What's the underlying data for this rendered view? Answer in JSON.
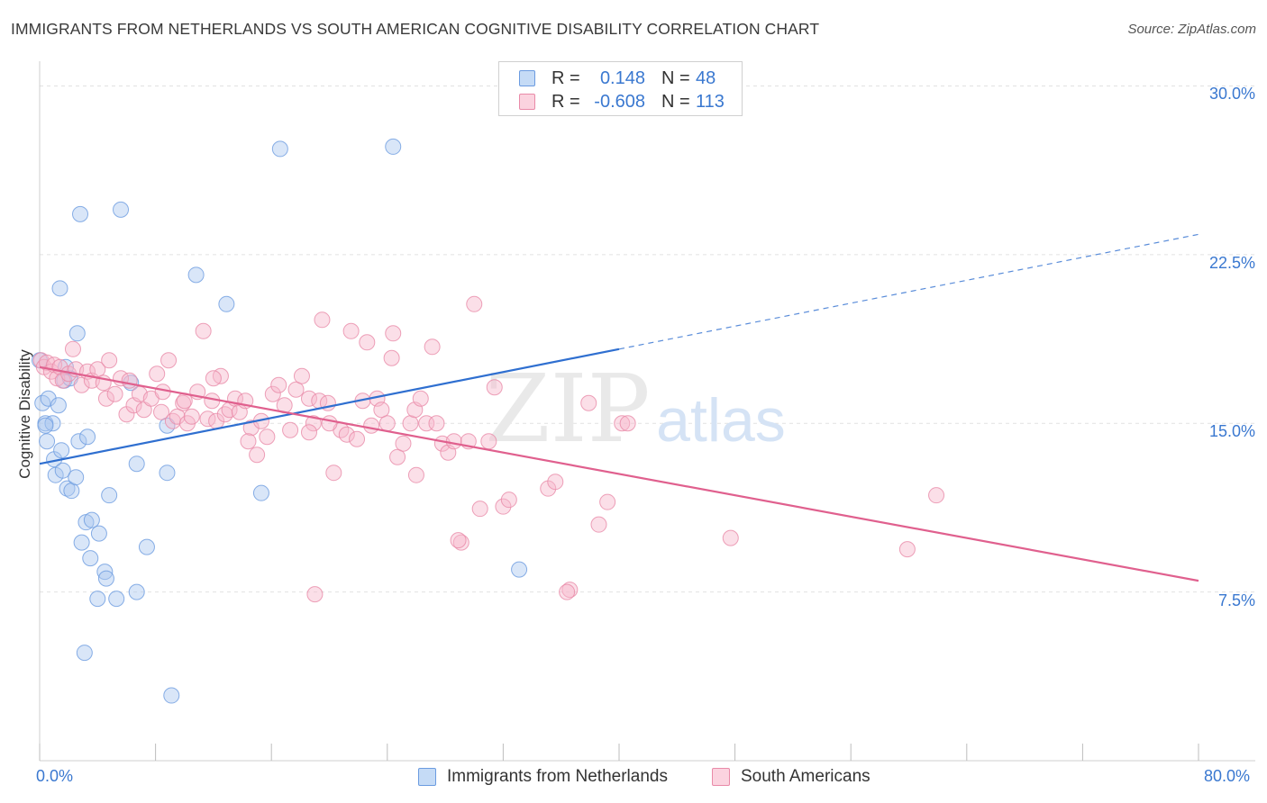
{
  "title": "IMMIGRANTS FROM NETHERLANDS VS SOUTH AMERICAN COGNITIVE DISABILITY CORRELATION CHART",
  "source": "Source: ZipAtlas.com",
  "watermark": {
    "zip": "ZIP",
    "atlas": "atlas"
  },
  "legend_top": [
    {
      "r_label": "R =",
      "r_value": "0.148",
      "n_label": "N =",
      "n_value": "48"
    },
    {
      "r_label": "R =",
      "r_value": "-0.608",
      "n_label": "N =",
      "n_value": "113"
    }
  ],
  "legend_bottom": [
    "Immigrants from Netherlands",
    "South Americans"
  ],
  "colors": {
    "blue_fill": "#aac8f0",
    "blue_stroke": "#6b9be0",
    "blue_line": "#2f6fd0",
    "pink_fill": "#f6b7cb",
    "pink_stroke": "#e98aa8",
    "pink_line": "#e0608e",
    "grid": "#e2e2e2",
    "tick_label": "#3a78d0"
  },
  "chart_data": {
    "type": "scatter",
    "title": "IMMIGRANTS FROM NETHERLANDS VS SOUTH AMERICAN COGNITIVE DISABILITY CORRELATION CHART",
    "xlabel": "",
    "ylabel": "Cognitive Disability",
    "xlim": [
      0,
      80
    ],
    "ylim": [
      0,
      32.5
    ],
    "x_tick_labels": [
      "0.0%",
      "80.0%"
    ],
    "y_ticks": [
      7.5,
      15.0,
      22.5,
      30.0
    ],
    "y_tick_labels": [
      "7.5%",
      "15.0%",
      "22.5%",
      "30.0%"
    ],
    "grid": true,
    "legend": "top-center",
    "series": [
      {
        "name": "Immigrants from Netherlands",
        "color": "#aac8f0",
        "points": [
          [
            0.0,
            17.8
          ],
          [
            0.2,
            15.9
          ],
          [
            0.4,
            15.0
          ],
          [
            0.5,
            14.2
          ],
          [
            0.6,
            16.1
          ],
          [
            0.9,
            15.0
          ],
          [
            1.0,
            13.4
          ],
          [
            1.1,
            12.7
          ],
          [
            1.3,
            15.8
          ],
          [
            1.4,
            21.0
          ],
          [
            1.5,
            13.8
          ],
          [
            1.6,
            12.9
          ],
          [
            1.7,
            16.9
          ],
          [
            1.9,
            12.1
          ],
          [
            2.1,
            17.0
          ],
          [
            2.2,
            12.0
          ],
          [
            2.5,
            12.6
          ],
          [
            2.6,
            19.0
          ],
          [
            2.7,
            14.2
          ],
          [
            2.8,
            24.3
          ],
          [
            2.9,
            9.7
          ],
          [
            3.2,
            10.6
          ],
          [
            3.3,
            14.4
          ],
          [
            3.6,
            10.7
          ],
          [
            4.1,
            10.1
          ],
          [
            3.5,
            9.0
          ],
          [
            4.5,
            8.4
          ],
          [
            4.6,
            8.1
          ],
          [
            4.8,
            11.8
          ],
          [
            4.0,
            7.2
          ],
          [
            5.3,
            7.2
          ],
          [
            6.3,
            16.8
          ],
          [
            6.7,
            7.5
          ],
          [
            6.7,
            13.2
          ],
          [
            7.4,
            9.5
          ],
          [
            8.8,
            12.8
          ],
          [
            8.8,
            14.9
          ],
          [
            9.1,
            2.9
          ],
          [
            10.8,
            21.6
          ],
          [
            12.9,
            20.3
          ],
          [
            15.3,
            11.9
          ],
          [
            16.6,
            27.2
          ],
          [
            24.4,
            27.3
          ],
          [
            33.1,
            8.5
          ],
          [
            5.6,
            24.5
          ],
          [
            3.1,
            4.8
          ],
          [
            0.4,
            14.9
          ],
          [
            1.8,
            17.5
          ]
        ]
      },
      {
        "name": "South Americans",
        "color": "#f6b7cb",
        "points": [
          [
            0.1,
            17.8
          ],
          [
            0.3,
            17.5
          ],
          [
            0.5,
            17.7
          ],
          [
            0.8,
            17.3
          ],
          [
            1.0,
            17.6
          ],
          [
            1.2,
            17.0
          ],
          [
            1.4,
            17.5
          ],
          [
            1.6,
            16.9
          ],
          [
            2.0,
            17.2
          ],
          [
            2.3,
            18.3
          ],
          [
            2.5,
            17.4
          ],
          [
            2.9,
            16.7
          ],
          [
            3.3,
            17.3
          ],
          [
            3.6,
            16.9
          ],
          [
            4.0,
            17.4
          ],
          [
            4.4,
            16.8
          ],
          [
            4.6,
            16.1
          ],
          [
            4.8,
            17.8
          ],
          [
            5.2,
            16.3
          ],
          [
            5.6,
            17.0
          ],
          [
            6.0,
            15.4
          ],
          [
            6.2,
            16.9
          ],
          [
            6.5,
            15.8
          ],
          [
            6.9,
            16.3
          ],
          [
            7.2,
            15.6
          ],
          [
            7.7,
            16.1
          ],
          [
            8.1,
            17.2
          ],
          [
            8.5,
            16.4
          ],
          [
            8.9,
            17.8
          ],
          [
            9.2,
            15.1
          ],
          [
            9.5,
            15.3
          ],
          [
            9.9,
            15.9
          ],
          [
            10.2,
            15.0
          ],
          [
            10.5,
            15.3
          ],
          [
            10.9,
            16.4
          ],
          [
            11.3,
            19.1
          ],
          [
            11.6,
            15.2
          ],
          [
            11.9,
            16.0
          ],
          [
            12.2,
            15.1
          ],
          [
            12.5,
            17.1
          ],
          [
            12.8,
            15.4
          ],
          [
            13.1,
            15.6
          ],
          [
            13.5,
            16.1
          ],
          [
            13.8,
            15.5
          ],
          [
            14.2,
            16.0
          ],
          [
            14.6,
            14.8
          ],
          [
            15.0,
            13.6
          ],
          [
            15.3,
            15.1
          ],
          [
            15.7,
            14.4
          ],
          [
            16.1,
            16.3
          ],
          [
            16.5,
            16.7
          ],
          [
            16.9,
            15.8
          ],
          [
            17.3,
            14.7
          ],
          [
            17.7,
            16.5
          ],
          [
            18.1,
            17.1
          ],
          [
            18.6,
            16.1
          ],
          [
            18.9,
            15.0
          ],
          [
            19.3,
            16.0
          ],
          [
            19.5,
            19.6
          ],
          [
            19.9,
            15.9
          ],
          [
            20.3,
            12.8
          ],
          [
            20.8,
            14.7
          ],
          [
            21.2,
            14.5
          ],
          [
            21.5,
            19.1
          ],
          [
            21.9,
            14.3
          ],
          [
            22.3,
            16.0
          ],
          [
            22.6,
            18.6
          ],
          [
            22.9,
            14.9
          ],
          [
            23.3,
            16.1
          ],
          [
            23.6,
            15.6
          ],
          [
            24.0,
            15.0
          ],
          [
            24.3,
            17.9
          ],
          [
            24.7,
            13.5
          ],
          [
            25.1,
            14.1
          ],
          [
            25.6,
            15.0
          ],
          [
            25.9,
            15.6
          ],
          [
            26.3,
            16.1
          ],
          [
            26.7,
            15.0
          ],
          [
            27.1,
            18.4
          ],
          [
            27.4,
            15.0
          ],
          [
            27.8,
            14.1
          ],
          [
            28.2,
            13.7
          ],
          [
            28.6,
            14.2
          ],
          [
            29.1,
            9.7
          ],
          [
            29.6,
            14.2
          ],
          [
            30.0,
            20.3
          ],
          [
            30.4,
            11.2
          ],
          [
            31.0,
            14.2
          ],
          [
            31.4,
            16.6
          ],
          [
            32.0,
            11.3
          ],
          [
            32.4,
            11.6
          ],
          [
            35.1,
            12.1
          ],
          [
            35.6,
            12.4
          ],
          [
            36.6,
            7.6
          ],
          [
            36.4,
            7.5
          ],
          [
            37.9,
            15.9
          ],
          [
            39.2,
            11.5
          ],
          [
            40.2,
            15.0
          ],
          [
            47.7,
            9.9
          ],
          [
            59.9,
            9.4
          ],
          [
            61.9,
            11.8
          ],
          [
            40.6,
            15.0
          ],
          [
            19.0,
            7.4
          ],
          [
            14.4,
            14.2
          ],
          [
            18.6,
            14.6
          ],
          [
            26.0,
            12.7
          ],
          [
            28.9,
            9.8
          ],
          [
            38.6,
            10.5
          ],
          [
            20.0,
            15.0
          ],
          [
            10.0,
            16.0
          ],
          [
            24.4,
            19.0
          ],
          [
            12.0,
            17.0
          ],
          [
            8.4,
            15.5
          ]
        ]
      }
    ],
    "trend_lines": [
      {
        "series": "Immigrants from Netherlands",
        "from": [
          0,
          13.2
        ],
        "to": [
          40,
          18.3
        ],
        "dashed_extension_to": [
          80,
          23.4
        ]
      },
      {
        "series": "South Americans",
        "from": [
          0,
          17.5
        ],
        "to": [
          80,
          8.0
        ]
      }
    ]
  }
}
